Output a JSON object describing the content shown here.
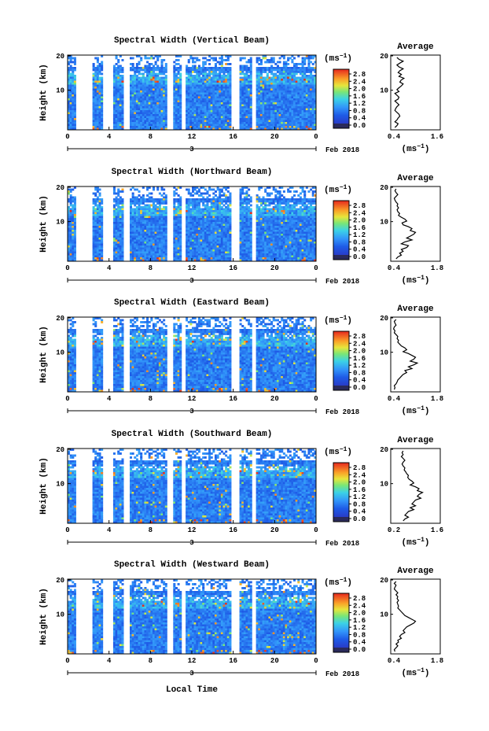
{
  "panels": [
    {
      "title": "Spectral Width (Vertical Beam)",
      "profile": [
        0.55,
        0.6,
        0.7,
        0.62,
        0.55,
        0.6,
        0.7,
        0.62,
        0.58,
        0.66,
        0.6,
        0.72,
        0.65,
        0.62,
        0.7,
        0.66,
        0.6,
        0.55,
        0.6,
        0.5,
        0.55,
        0.6,
        0.58,
        0.5,
        0.55,
        0.6,
        0.55,
        0.52,
        0.5,
        0.55,
        0.6,
        0.62,
        0.58,
        0.55,
        0.5,
        0.58,
        0.55,
        0.5
      ],
      "avg_xlim": [
        0.4,
        1.6
      ],
      "avg_xticks": [
        "0.4",
        "1.6"
      ]
    },
    {
      "title": "Spectral Width (Northward Beam)",
      "profile": [
        0.55,
        0.52,
        0.55,
        0.6,
        0.55,
        0.5,
        0.52,
        0.55,
        0.6,
        0.58,
        0.62,
        0.58,
        0.6,
        0.65,
        0.62,
        0.7,
        0.8,
        0.85,
        0.72,
        0.75,
        0.9,
        1.0,
        0.95,
        1.1,
        1.05,
        0.95,
        0.85,
        1.0,
        0.8,
        0.7,
        0.9,
        0.85,
        0.7,
        0.75,
        0.65,
        0.7,
        0.6,
        0.55
      ],
      "avg_xlim": [
        0.4,
        1.8
      ],
      "avg_xticks": [
        "0.4",
        "1.8"
      ]
    },
    {
      "title": "Spectral Width (Eastward Beam)",
      "profile": [
        0.55,
        0.5,
        0.52,
        0.55,
        0.5,
        0.48,
        0.52,
        0.5,
        0.55,
        0.6,
        0.58,
        0.62,
        0.6,
        0.65,
        0.7,
        0.8,
        0.85,
        0.75,
        0.9,
        1.0,
        1.1,
        1.05,
        0.95,
        1.15,
        1.05,
        0.9,
        1.0,
        0.8,
        0.85,
        0.75,
        0.7,
        0.65,
        0.6,
        0.58,
        0.55,
        0.5,
        0.52,
        0.5
      ],
      "avg_xlim": [
        0.4,
        1.8
      ],
      "avg_xticks": [
        "0.4",
        "1.8"
      ]
    },
    {
      "title": "Spectral Width (Southward Beam)",
      "profile": [
        0.55,
        0.52,
        0.55,
        0.5,
        0.55,
        0.6,
        0.55,
        0.52,
        0.55,
        0.6,
        0.58,
        0.62,
        0.65,
        0.7,
        0.68,
        0.72,
        0.8,
        0.85,
        0.75,
        0.9,
        1.0,
        0.95,
        1.1,
        1.0,
        0.95,
        1.05,
        0.9,
        0.85,
        0.8,
        0.9,
        0.75,
        0.85,
        0.7,
        0.65,
        0.6,
        0.7,
        0.6,
        0.55
      ],
      "avg_xlim": [
        0.2,
        1.6
      ],
      "avg_xticks": [
        "0.2",
        "1.6"
      ]
    },
    {
      "title": "Spectral Width (Westward Beam)",
      "profile": [
        0.55,
        0.5,
        0.55,
        0.52,
        0.5,
        0.55,
        0.6,
        0.55,
        0.6,
        0.58,
        0.62,
        0.58,
        0.6,
        0.62,
        0.6,
        0.65,
        0.7,
        0.75,
        0.8,
        0.9,
        1.0,
        1.1,
        1.05,
        0.95,
        0.85,
        0.8,
        0.75,
        0.8,
        0.7,
        0.65,
        0.7,
        0.6,
        0.62,
        0.55,
        0.6,
        0.55,
        0.5,
        0.52
      ],
      "avg_xlim": [
        0.4,
        1.8
      ],
      "avg_xticks": [
        "0.4",
        "1.8"
      ]
    }
  ],
  "labels": {
    "ylabel": "Height (km)",
    "yticks": [
      "20",
      "10"
    ],
    "xticks": [
      "0",
      "4",
      "8",
      "12",
      "16",
      "20",
      "0"
    ],
    "day": "3",
    "month_year": "Feb 2018",
    "xlabel": "Local Time",
    "unit": "(ms",
    "unit_exp": "−1",
    "unit_close": ")",
    "avg_title": "Average",
    "avg_unit": "(ms",
    "colorbar_ticks": [
      "2.8",
      "2.4",
      "2.0",
      "1.6",
      "1.2",
      "0.8",
      "0.4",
      "0.0"
    ]
  },
  "chart_data": [
    {
      "type": "heatmap",
      "title": "Spectral Width (Vertical Beam)",
      "ylabel": "Height (km)",
      "ylim": [
        2,
        20
      ],
      "xlim": [
        0,
        24
      ],
      "colorbar_range": [
        0,
        3.0
      ],
      "colorbar_unit": "ms-1",
      "xlabel_date": "3 Feb 2018"
    },
    {
      "type": "heatmap",
      "title": "Spectral Width (Northward Beam)",
      "ylabel": "Height (km)",
      "ylim": [
        2,
        20
      ],
      "xlim": [
        0,
        24
      ],
      "colorbar_range": [
        0,
        3.0
      ],
      "colorbar_unit": "ms-1",
      "xlabel_date": "3 Feb 2018"
    },
    {
      "type": "heatmap",
      "title": "Spectral Width (Eastward Beam)",
      "ylabel": "Height (km)",
      "ylim": [
        2,
        20
      ],
      "xlim": [
        0,
        24
      ],
      "colorbar_range": [
        0,
        3.0
      ],
      "colorbar_unit": "ms-1",
      "xlabel_date": "3 Feb 2018"
    },
    {
      "type": "heatmap",
      "title": "Spectral Width (Southward Beam)",
      "ylabel": "Height (km)",
      "ylim": [
        2,
        20
      ],
      "xlim": [
        0,
        24
      ],
      "colorbar_range": [
        0,
        3.0
      ],
      "colorbar_unit": "ms-1",
      "xlabel_date": "3 Feb 2018"
    },
    {
      "type": "heatmap",
      "title": "Spectral Width (Westward Beam)",
      "ylabel": "Height (km)",
      "ylim": [
        2,
        20
      ],
      "xlim": [
        0,
        24
      ],
      "colorbar_range": [
        0,
        3.0
      ],
      "colorbar_unit": "ms-1",
      "xlabel": "Local Time",
      "xlabel_date": "3 Feb 2018"
    }
  ],
  "colors": {
    "background": "#ffffff",
    "axis": "#000000",
    "gap": "#ffffff"
  }
}
